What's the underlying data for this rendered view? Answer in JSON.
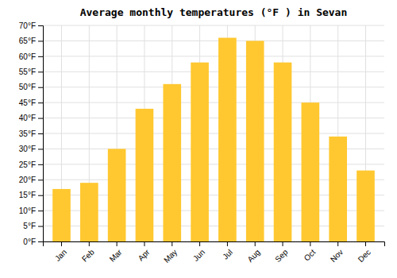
{
  "chart_data": {
    "type": "bar",
    "title": "Average monthly temperatures (°F ) in Sevan",
    "categories": [
      "Jan",
      "Feb",
      "Mar",
      "Apr",
      "May",
      "Jun",
      "Jul",
      "Aug",
      "Sep",
      "Oct",
      "Nov",
      "Dec"
    ],
    "values": [
      17,
      19,
      30,
      43,
      51,
      58,
      66,
      65,
      58,
      45,
      34,
      23
    ],
    "color": "#FFC830",
    "ylim": [
      0,
      70
    ],
    "yticks": [
      {
        "value": 0,
        "label": "0°F"
      },
      {
        "value": 5,
        "label": "5°F"
      },
      {
        "value": 10,
        "label": "10°F"
      },
      {
        "value": 15,
        "label": "15°F"
      },
      {
        "value": 20,
        "label": "20°F"
      },
      {
        "value": 25,
        "label": "25°F"
      },
      {
        "value": 30,
        "label": "30°F"
      },
      {
        "value": 35,
        "label": "35°F"
      },
      {
        "value": 40,
        "label": "40°F"
      },
      {
        "value": 45,
        "label": "45°F"
      },
      {
        "value": 50,
        "label": "50°F"
      },
      {
        "value": 55,
        "label": "55°F"
      },
      {
        "value": 60,
        "label": "60°F"
      },
      {
        "value": 65,
        "label": "65°F"
      },
      {
        "value": 70,
        "label": "70°F"
      }
    ],
    "grid": true
  }
}
